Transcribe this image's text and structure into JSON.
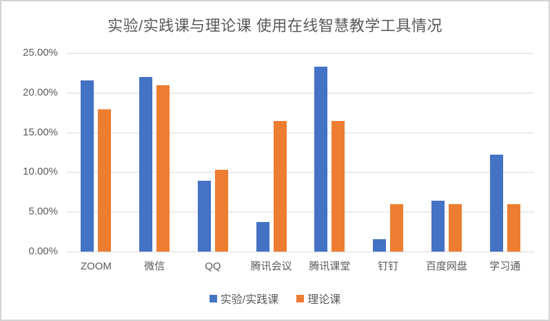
{
  "frame": {
    "background": "#FFFFFF",
    "border_color": "#D3D3D3"
  },
  "chart_data": {
    "type": "bar",
    "title": "实验/实践课与理论课 使用在线智慧教学工具情况",
    "categories": [
      "ZOOM",
      "微信",
      "QQ",
      "腾讯会议",
      "腾讯课堂",
      "钉钉",
      "百度网盘",
      "学习通"
    ],
    "series": [
      {
        "name": "实验/实践课",
        "color": "#4472C4",
        "values": [
          21.5,
          22.0,
          8.9,
          3.7,
          23.3,
          1.6,
          6.4,
          12.2
        ]
      },
      {
        "name": "理论课",
        "color": "#ED7D31",
        "values": [
          17.9,
          20.9,
          10.3,
          16.4,
          16.4,
          6.0,
          6.0,
          6.0
        ]
      }
    ],
    "xlabel": "",
    "ylabel": "",
    "ylim": [
      0,
      25
    ],
    "y_ticks": [
      "0.00%",
      "5.00%",
      "10.00%",
      "15.00%",
      "20.00%",
      "25.00%"
    ],
    "y_tick_values": [
      0,
      5,
      10,
      15,
      20,
      25
    ],
    "grid": true,
    "legend_position": "bottom",
    "text_color": "#595959",
    "gridline_color": "#D9D9D9"
  }
}
